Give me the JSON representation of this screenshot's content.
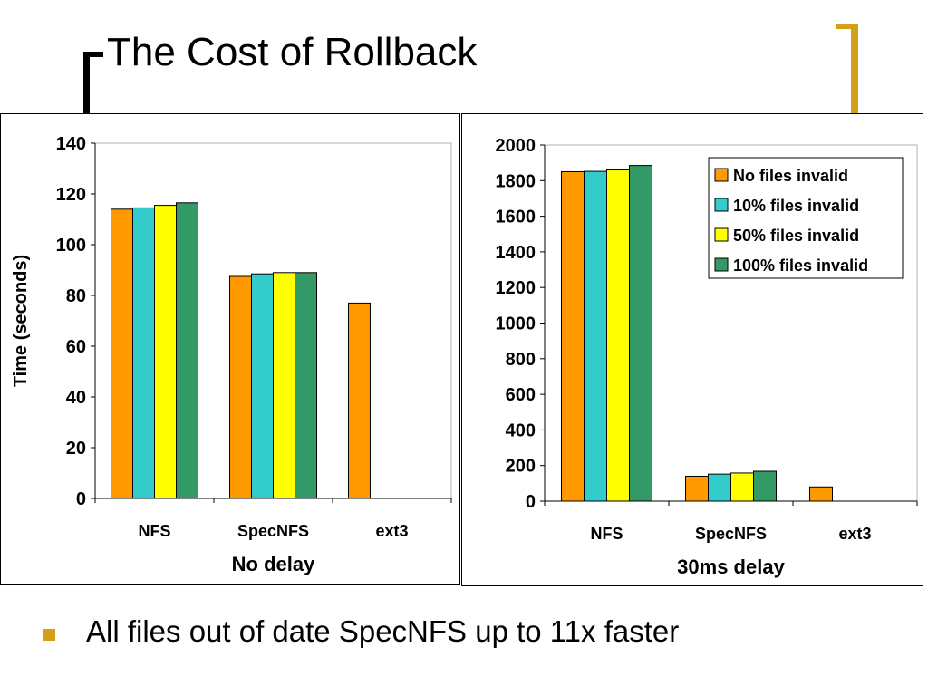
{
  "slide": {
    "title": "The Cost of Rollback",
    "bullet": "All files out of date SpecNFS up to 11x faster",
    "accent_color": "#d4a017"
  },
  "chart_data": [
    {
      "type": "bar",
      "categories": [
        "NFS",
        "SpecNFS",
        "ext3"
      ],
      "series": [
        {
          "name": "No files invalid",
          "color": "#ff9900",
          "values": [
            114,
            87.5,
            77
          ]
        },
        {
          "name": "10% files invalid",
          "color": "#33cccc",
          "values": [
            114.5,
            88.5,
            null
          ]
        },
        {
          "name": "50% files invalid",
          "color": "#ffff00",
          "values": [
            115.5,
            89,
            null
          ]
        },
        {
          "name": "100% files invalid",
          "color": "#339966",
          "values": [
            116.5,
            89,
            null
          ]
        }
      ],
      "xlabel": "No delay",
      "ylabel": "Time (seconds)",
      "ylim": [
        0,
        140
      ],
      "yticks": [
        0,
        20,
        40,
        60,
        80,
        100,
        120,
        140
      ],
      "legend": "none"
    },
    {
      "type": "bar",
      "categories": [
        "NFS",
        "SpecNFS",
        "ext3"
      ],
      "series": [
        {
          "name": "No files invalid",
          "color": "#ff9900",
          "values": [
            1850,
            140,
            80
          ]
        },
        {
          "name": "10% files invalid",
          "color": "#33cccc",
          "values": [
            1852,
            152,
            null
          ]
        },
        {
          "name": "50% files invalid",
          "color": "#ffff00",
          "values": [
            1860,
            158,
            null
          ]
        },
        {
          "name": "100% files invalid",
          "color": "#339966",
          "values": [
            1885,
            168,
            null
          ]
        }
      ],
      "xlabel": "30ms delay",
      "ylabel": "",
      "ylim": [
        0,
        2000
      ],
      "yticks": [
        0,
        200,
        400,
        600,
        800,
        1000,
        1200,
        1400,
        1600,
        1800,
        2000
      ],
      "legend": "top-right"
    }
  ]
}
